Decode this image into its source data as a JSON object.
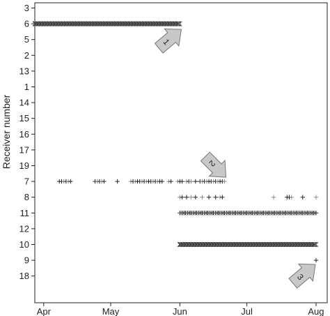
{
  "chart_data": {
    "type": "scatter",
    "title": "",
    "xlabel": "",
    "ylabel": "Receiver number",
    "x_ticks": [
      "Apr",
      "May",
      "Jun",
      "Jul",
      "Aug"
    ],
    "x_tick_dates": [
      "2000-04-01",
      "2000-05-01",
      "2000-06-01",
      "2000-07-01",
      "2000-08-01"
    ],
    "xlim": [
      "2000-03-28",
      "2000-08-06"
    ],
    "y_categories": [
      "3",
      "6",
      "5",
      "2",
      "13",
      "1",
      "14",
      "15",
      "16",
      "17",
      "19",
      "7",
      "8",
      "11",
      "12",
      "10",
      "9",
      "18"
    ],
    "grid": false,
    "legend": "none",
    "marker_colors": {
      "dark": "#222222",
      "light": "#8c8c8c"
    },
    "series": [
      {
        "receiver": "6",
        "marker": "x",
        "segments": [
          {
            "start": "2000-03-28",
            "end": "2000-06-01",
            "density": "continuous"
          }
        ]
      },
      {
        "receiver": "7",
        "marker": "+",
        "points": [
          "2000-04-08",
          "2000-04-09",
          "2000-04-10",
          "2000-04-11",
          "2000-04-12",
          "2000-04-13",
          "2000-04-24",
          "2000-04-25",
          "2000-04-26",
          "2000-04-27",
          "2000-04-28",
          "2000-05-04",
          "2000-05-10",
          "2000-05-11",
          "2000-05-12",
          "2000-05-13",
          "2000-05-14",
          "2000-05-15",
          "2000-05-16",
          "2000-05-17",
          "2000-05-18",
          "2000-05-19",
          "2000-05-20",
          "2000-05-21",
          "2000-05-22",
          "2000-05-23",
          "2000-05-24",
          "2000-05-27",
          "2000-05-28",
          "2000-05-31",
          "2000-06-01",
          "2000-06-02",
          "2000-06-04",
          "2000-06-05",
          "2000-06-06",
          "2000-06-08",
          "2000-06-10",
          "2000-06-11",
          "2000-06-12",
          "2000-06-13",
          "2000-06-14",
          "2000-06-15",
          "2000-06-16",
          "2000-06-17",
          "2000-06-18",
          "2000-06-19",
          "2000-06-20",
          "2000-06-21"
        ]
      },
      {
        "receiver": "8",
        "marker": "+",
        "points": [
          "2000-06-01",
          "2000-06-02",
          "2000-06-04",
          "2000-06-06",
          "2000-06-08",
          "2000-06-11",
          "2000-06-14",
          "2000-06-17",
          "2000-06-19",
          "2000-06-20",
          "2000-07-13",
          "2000-07-19",
          "2000-07-20",
          "2000-07-21",
          "2000-07-26",
          "2000-08-01"
        ]
      },
      {
        "receiver": "11",
        "marker": "+",
        "segments": [
          {
            "start": "2000-06-01",
            "end": "2000-08-01",
            "density": "dense"
          }
        ]
      },
      {
        "receiver": "10",
        "marker": "x",
        "segments": [
          {
            "start": "2000-06-01",
            "end": "2000-08-01",
            "density": "continuous"
          }
        ]
      },
      {
        "receiver": "9",
        "marker": "+",
        "points": [
          "2000-08-01"
        ]
      }
    ],
    "annotations": [
      {
        "label": "1",
        "target_date": "2000-06-01",
        "target_receiver": "6"
      },
      {
        "label": "2",
        "target_date": "2000-06-21",
        "target_receiver": "7"
      },
      {
        "label": "3",
        "target_date": "2000-08-01",
        "target_receiver": "9"
      }
    ]
  }
}
